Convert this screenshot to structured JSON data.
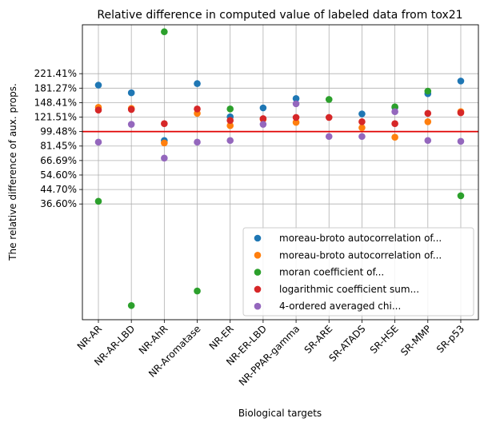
{
  "chart_data": {
    "type": "scatter",
    "title": "Relative difference in computed value of labeled data from tox21",
    "xlabel": "Biological targets",
    "ylabel": "The relative difference of aux. props.",
    "categories": [
      "NR-AR",
      "NR-AR-LBD",
      "NR-AhR",
      "NR-Aromatase",
      "NR-ER",
      "NR-ER-LBD",
      "NR-PPAR-gamma",
      "SR-ARE",
      "SR-ATADS",
      "SR-HSE",
      "SR-MMP",
      "SR-p53"
    ],
    "y_scale": "log",
    "ylim": [
      0.074,
      4.35
    ],
    "yticks": [
      {
        "value": 2.2141,
        "label": "221.41%"
      },
      {
        "value": 1.8127,
        "label": "181.27%"
      },
      {
        "value": 1.4841,
        "label": "148.41%"
      },
      {
        "value": 1.2151,
        "label": "121.51%"
      },
      {
        "value": 0.9948,
        "label": "99.48%"
      },
      {
        "value": 0.8145,
        "label": "81.45%"
      },
      {
        "value": 0.6669,
        "label": "66.69%"
      },
      {
        "value": 0.546,
        "label": "54.60%"
      },
      {
        "value": 0.447,
        "label": "44.70%"
      },
      {
        "value": 0.366,
        "label": "36.60%"
      }
    ],
    "reference_line": {
      "value": 0.9948,
      "color": "#e00000"
    },
    "grid": true,
    "legend_position": "lower-right",
    "series": [
      {
        "name": "moreau-broto autocorrelation of...",
        "color": "#1f77b4",
        "values": [
          1.89,
          1.7,
          0.88,
          1.93,
          1.22,
          1.38,
          1.57,
          null,
          1.27,
          1.39,
          1.68,
          2.0
        ]
      },
      {
        "name": "moreau-broto autocorrelation of...",
        "color": "#ff7f0e",
        "values": [
          1.39,
          1.37,
          0.85,
          1.28,
          1.08,
          1.18,
          1.13,
          null,
          1.05,
          0.92,
          1.14,
          1.31
        ]
      },
      {
        "name": "moran coefficient of...",
        "color": "#2ca02c",
        "values": [
          0.38,
          0.09,
          3.95,
          0.11,
          1.36,
          null,
          null,
          1.55,
          null,
          1.4,
          1.74,
          0.41
        ]
      },
      {
        "name": "logarithmic coefficient sum...",
        "color": "#d62728",
        "values": [
          1.34,
          1.35,
          1.11,
          1.36,
          1.16,
          1.19,
          1.21,
          1.21,
          1.14,
          1.11,
          1.28,
          1.29
        ]
      },
      {
        "name": "4-ordered averaged chi...",
        "color": "#9467bd",
        "values": [
          0.86,
          1.1,
          0.69,
          0.86,
          0.88,
          1.1,
          1.46,
          0.93,
          0.93,
          1.31,
          0.88,
          0.87
        ]
      }
    ]
  }
}
